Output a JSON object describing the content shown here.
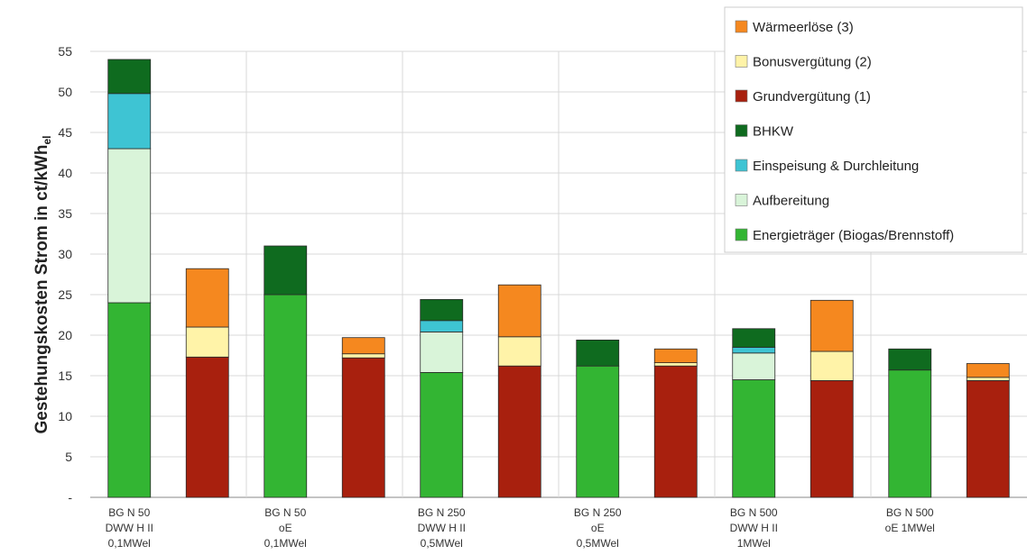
{
  "chart_data": {
    "type": "bar",
    "stacked": true,
    "ylabel": "Gestehungskosten Strom in ct/kWh",
    "ylabel_sub": "el",
    "ylim": [
      0,
      55
    ],
    "yticks": [
      "-",
      "5",
      "10",
      "15",
      "20",
      "25",
      "30",
      "35",
      "40",
      "45",
      "50",
      "55"
    ],
    "grid": true,
    "legend_position": "top-right",
    "groups": [
      {
        "label": [
          "BG N 50",
          "DWW H II",
          "0,1MWel"
        ]
      },
      {
        "label": [
          "BG N 50",
          "oE",
          "0,1MWel"
        ]
      },
      {
        "label": [
          "BG N 250",
          "DWW H II",
          "0,5MWel"
        ]
      },
      {
        "label": [
          "BG N 250",
          "oE",
          "0,5MWel"
        ]
      },
      {
        "label": [
          "BG N 500",
          "DWW H II",
          "1MWel"
        ]
      },
      {
        "label": [
          "BG N 500",
          "oE 1MWel",
          ""
        ]
      }
    ],
    "series": [
      {
        "name": "Energieträger (Biogas/Brennstoff)",
        "color": "#33b533",
        "stack": "cost",
        "values": [
          24.0,
          25.0,
          15.4,
          16.2,
          14.5,
          15.7
        ]
      },
      {
        "name": "Aufbereitung",
        "color": "#d9f4d9",
        "stack": "cost",
        "values": [
          19.0,
          0,
          5.0,
          0,
          3.3,
          0
        ]
      },
      {
        "name": "Einspeisung & Durchleitung",
        "color": "#3ec4d3",
        "stack": "cost",
        "values": [
          6.8,
          0,
          1.4,
          0,
          0.7,
          0
        ]
      },
      {
        "name": "BHKW",
        "color": "#0f6b1f",
        "stack": "cost",
        "values": [
          4.2,
          6.0,
          2.6,
          3.2,
          2.3,
          2.6
        ]
      },
      {
        "name": "Grundvergütung (1)",
        "color": "#a8200e",
        "stack": "revenue",
        "values": [
          17.3,
          17.2,
          16.2,
          16.2,
          14.4,
          14.4
        ]
      },
      {
        "name": "Bonusvergütung (2)",
        "color": "#fff3a8",
        "stack": "revenue",
        "values": [
          3.7,
          0.5,
          3.6,
          0.4,
          3.6,
          0.4
        ]
      },
      {
        "name": "Wärmeerlöse (3)",
        "color": "#f5881f",
        "stack": "revenue",
        "values": [
          7.2,
          2.0,
          6.4,
          1.7,
          6.3,
          1.7
        ]
      }
    ],
    "legend_order": [
      "Wärmeerlöse (3)",
      "Bonusvergütung (2)",
      "Grundvergütung (1)",
      "BHKW",
      "Einspeisung & Durchleitung",
      "Aufbereitung",
      "Energieträger (Biogas/Brennstoff)"
    ]
  }
}
